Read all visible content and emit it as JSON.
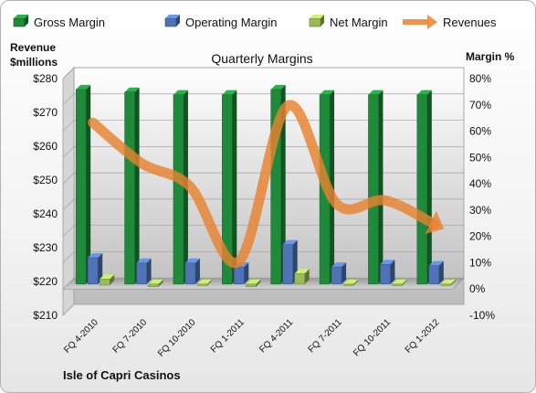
{
  "chart_data": {
    "type": "bar",
    "title": "Quarterly Margins",
    "company": "Isle of Capri Casinos",
    "y_left_label_line1": "Revenue",
    "y_left_label_line2": "$millions",
    "y_right_label": "Margin %",
    "categories": [
      "FQ 4-2010",
      "FQ 7-2010",
      "FQ 10-2010",
      "FQ 1-2011",
      "FQ 4-2011",
      "FQ 7-2011",
      "FQ 10-2011",
      "FQ 1-2012"
    ],
    "series": [
      {
        "name": "Gross Margin",
        "axis": "right",
        "kind": "bar",
        "color": "#1f8a3a",
        "values": [
          74,
          73,
          72,
          72,
          74,
          72,
          72,
          72
        ]
      },
      {
        "name": "Operating Margin",
        "axis": "right",
        "kind": "bar",
        "color": "#4f73b4",
        "values": [
          10,
          8,
          8,
          6.5,
          15,
          6.5,
          7.5,
          7
        ]
      },
      {
        "name": "Net Margin",
        "axis": "right",
        "kind": "bar",
        "color": "#9bbb59",
        "values": [
          1.5,
          -1,
          -0.5,
          -1,
          4,
          -0.5,
          -0.5,
          -0.5
        ]
      },
      {
        "name": "Revenues",
        "axis": "left",
        "kind": "line",
        "color": "#e8832f",
        "values": [
          267,
          255,
          248,
          226,
          272,
          243,
          244,
          237
        ]
      }
    ],
    "y_left_ticks": [
      "$280",
      "$270",
      "$260",
      "$250",
      "$240",
      "$230",
      "$220",
      "$210"
    ],
    "y_right_ticks": [
      "80%",
      "70%",
      "60%",
      "50%",
      "40%",
      "30%",
      "20%",
      "10%",
      "0%",
      "-10%"
    ],
    "ylim_left": [
      210,
      280
    ],
    "ylim_right": [
      -10,
      80
    ],
    "grid": true,
    "legend_position": "top"
  }
}
